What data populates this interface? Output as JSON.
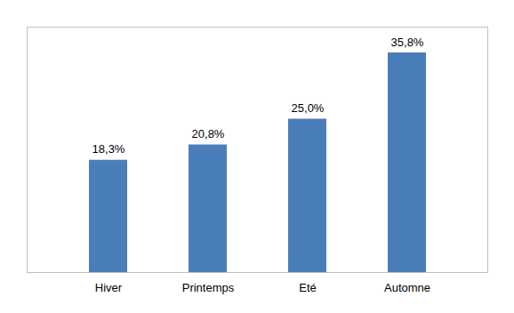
{
  "chart_data": {
    "type": "bar",
    "categories": [
      "Hiver",
      "Printemps",
      "Eté",
      "Automne"
    ],
    "values": [
      18.3,
      20.8,
      25.0,
      35.8
    ],
    "value_labels": [
      "18,3%",
      "20,8%",
      "25,0%",
      "35,8%"
    ],
    "color": "#4a7ebb",
    "ylim": [
      0,
      40
    ],
    "data_labels": true,
    "tick_labels": "x",
    "grid": false
  }
}
